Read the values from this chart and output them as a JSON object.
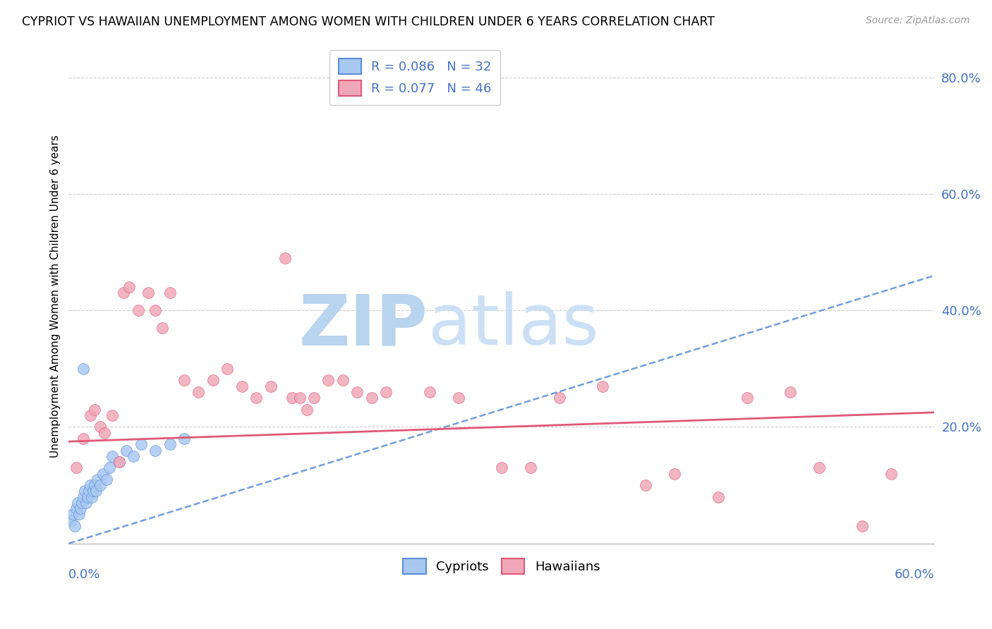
{
  "title": "CYPRIOT VS HAWAIIAN UNEMPLOYMENT AMONG WOMEN WITH CHILDREN UNDER 6 YEARS CORRELATION CHART",
  "source": "Source: ZipAtlas.com",
  "ylabel": "Unemployment Among Women with Children Under 6 years",
  "xmin": 0.0,
  "xmax": 0.6,
  "ymin": 0.0,
  "ymax": 0.85,
  "cypriot_color": "#a8c8f0",
  "hawaiian_color": "#f0a8b8",
  "cypriot_line_color": "#5b8dd9",
  "hawaiian_line_color": "#e05878",
  "watermark_zip_color": "#c8dff0",
  "watermark_atlas_color": "#d8e8f8",
  "background_color": "#ffffff",
  "cypriot_trend_start_y": 0.0,
  "cypriot_trend_end_y": 0.46,
  "hawaiian_trend_start_y": 0.175,
  "hawaiian_trend_end_y": 0.225,
  "cypriot_x": [
    0.002,
    0.003,
    0.004,
    0.005,
    0.006,
    0.007,
    0.008,
    0.009,
    0.01,
    0.011,
    0.012,
    0.013,
    0.014,
    0.015,
    0.016,
    0.017,
    0.018,
    0.019,
    0.02,
    0.022,
    0.024,
    0.026,
    0.028,
    0.03,
    0.035,
    0.04,
    0.045,
    0.05,
    0.06,
    0.07,
    0.08,
    0.01
  ],
  "cypriot_y": [
    0.04,
    0.05,
    0.03,
    0.06,
    0.07,
    0.05,
    0.06,
    0.07,
    0.08,
    0.09,
    0.07,
    0.08,
    0.09,
    0.1,
    0.08,
    0.09,
    0.1,
    0.09,
    0.11,
    0.1,
    0.12,
    0.11,
    0.13,
    0.15,
    0.14,
    0.16,
    0.15,
    0.17,
    0.16,
    0.17,
    0.18,
    0.3
  ],
  "hawaiian_x": [
    0.005,
    0.01,
    0.015,
    0.018,
    0.022,
    0.025,
    0.03,
    0.035,
    0.038,
    0.042,
    0.048,
    0.055,
    0.06,
    0.065,
    0.07,
    0.08,
    0.09,
    0.1,
    0.11,
    0.12,
    0.13,
    0.14,
    0.15,
    0.155,
    0.16,
    0.165,
    0.17,
    0.18,
    0.19,
    0.2,
    0.21,
    0.22,
    0.25,
    0.27,
    0.3,
    0.32,
    0.34,
    0.37,
    0.4,
    0.42,
    0.45,
    0.47,
    0.5,
    0.52,
    0.55,
    0.57
  ],
  "hawaiian_y": [
    0.13,
    0.18,
    0.22,
    0.23,
    0.2,
    0.19,
    0.22,
    0.14,
    0.43,
    0.44,
    0.4,
    0.43,
    0.4,
    0.37,
    0.43,
    0.28,
    0.26,
    0.28,
    0.3,
    0.27,
    0.25,
    0.27,
    0.49,
    0.25,
    0.25,
    0.23,
    0.25,
    0.28,
    0.28,
    0.26,
    0.25,
    0.26,
    0.26,
    0.25,
    0.13,
    0.13,
    0.25,
    0.27,
    0.1,
    0.12,
    0.08,
    0.25,
    0.26,
    0.13,
    0.03,
    0.12
  ]
}
